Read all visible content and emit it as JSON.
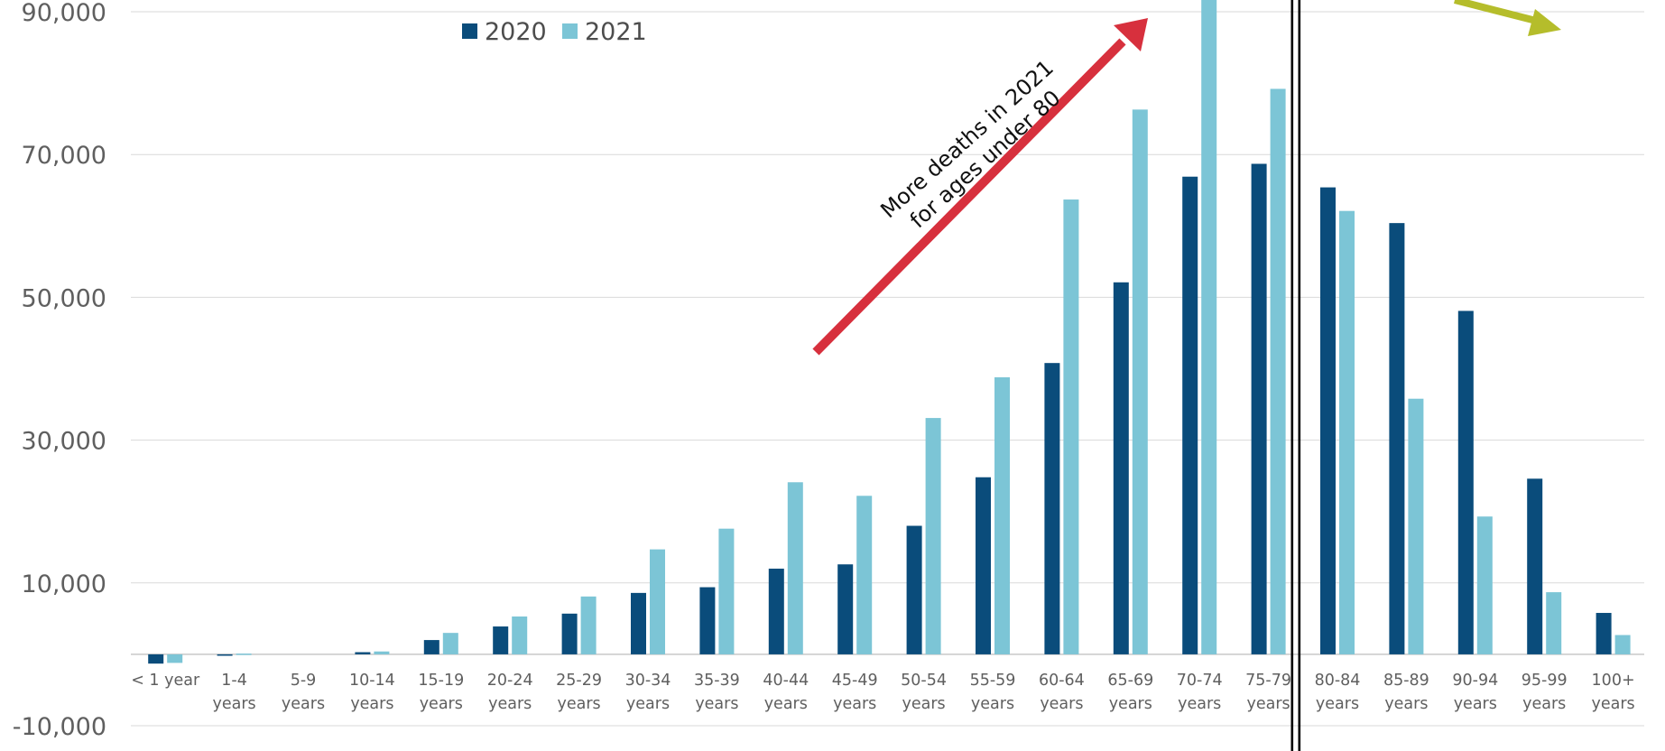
{
  "chart_data": {
    "type": "bar",
    "categories": [
      [
        "< 1 year"
      ],
      [
        "1-4",
        "years"
      ],
      [
        "5-9",
        "years"
      ],
      [
        "10-14",
        "years"
      ],
      [
        "15-19",
        "years"
      ],
      [
        "20-24",
        "years"
      ],
      [
        "25-29",
        "years"
      ],
      [
        "30-34",
        "years"
      ],
      [
        "35-39",
        "years"
      ],
      [
        "40-44",
        "years"
      ],
      [
        "45-49",
        "years"
      ],
      [
        "50-54",
        "years"
      ],
      [
        "55-59",
        "years"
      ],
      [
        "60-64",
        "years"
      ],
      [
        "65-69",
        "years"
      ],
      [
        "70-74",
        "years"
      ],
      [
        "75-79",
        "years"
      ],
      [
        "80-84",
        "years"
      ],
      [
        "85-89",
        "years"
      ],
      [
        "90-94",
        "years"
      ],
      [
        "95-99",
        "years"
      ],
      [
        "100+",
        "years"
      ]
    ],
    "series": [
      {
        "name": "2020",
        "color": "#0a4c7b",
        "values": [
          -1300,
          -200,
          0,
          300,
          2000,
          3900,
          5700,
          8600,
          9400,
          12000,
          12600,
          18000,
          24800,
          40800,
          52100,
          66900,
          68700,
          65400,
          60400,
          48100,
          24600,
          5800
        ]
      },
      {
        "name": "2021",
        "color": "#7cc5d6",
        "values": [
          -1200,
          100,
          0,
          400,
          3000,
          5300,
          8100,
          14700,
          17600,
          24100,
          22200,
          33100,
          38800,
          63700,
          76300,
          92800,
          79200,
          62100,
          35800,
          19300,
          8700,
          2700
        ]
      }
    ],
    "yticks": [
      "90,000",
      "70,000",
      "50,000",
      "30,000",
      "10,000",
      "-10,000"
    ],
    "ytick_values": [
      90000,
      70000,
      50000,
      30000,
      10000,
      -10000
    ],
    "ylim": [
      -10000,
      91600
    ],
    "grid": true,
    "legend_position": "top-left",
    "title": "",
    "xlabel": "",
    "ylabel": "",
    "divider_between": [
      "75-79 years",
      "80-84 years"
    ],
    "annotations": [
      {
        "lines": [
          "More deaths in 2021",
          "for ages under 80"
        ],
        "arrow_color": "#d7303d",
        "arrow_direction": "up-right"
      },
      {
        "lines": [],
        "arrow_color": "#b5bd2b",
        "arrow_direction": "down-right"
      }
    ]
  }
}
